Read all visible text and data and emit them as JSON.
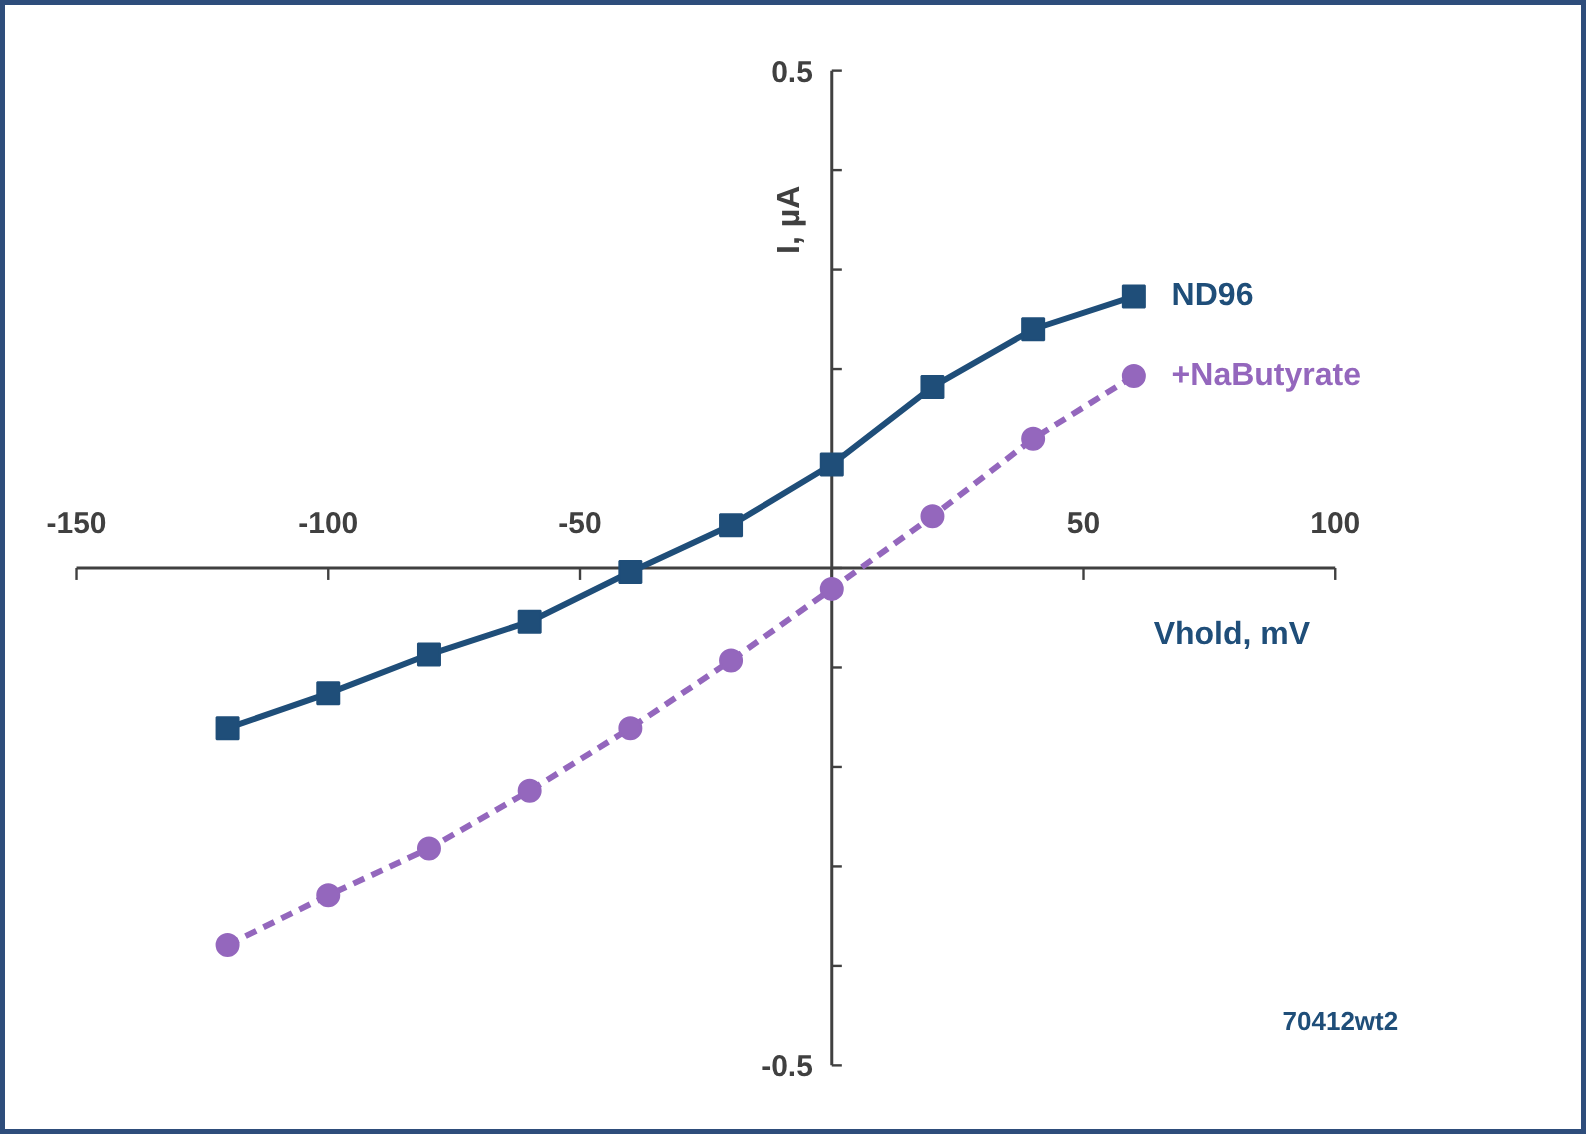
{
  "chart_data": {
    "type": "line",
    "xlabel": "Vhold, mV",
    "ylabel": "I, µA",
    "x": [
      -120,
      -100,
      -80,
      -60,
      -40,
      -20,
      0,
      20,
      40,
      60
    ],
    "series": [
      {
        "name": "ND96",
        "color": "#1f4e79",
        "marker": "square",
        "line_style": "solid",
        "values": [
          -0.161,
          -0.126,
          -0.087,
          -0.054,
          -0.004,
          0.043,
          0.104,
          0.182,
          0.24,
          0.273
        ]
      },
      {
        "name": "+NaButyrate",
        "color": "#9467bd",
        "marker": "circle",
        "line_style": "dashed",
        "values": [
          -0.379,
          -0.329,
          -0.282,
          -0.224,
          -0.161,
          -0.093,
          -0.021,
          0.052,
          0.13,
          0.193
        ]
      }
    ],
    "xlim": [
      -150,
      100
    ],
    "ylim": [
      -0.5,
      0.5
    ],
    "xticks": [
      -150,
      -100,
      -50,
      {
        "value": 0,
        "label": null
      },
      50,
      100
    ],
    "yticks": [
      -0.5,
      {
        "value": -0.4,
        "label": null
      },
      {
        "value": -0.3,
        "label": null
      },
      {
        "value": -0.2,
        "label": null
      },
      {
        "value": -0.1,
        "label": null
      },
      {
        "value": 0,
        "label": null
      },
      {
        "value": 0.1,
        "label": null
      },
      {
        "value": 0.2,
        "label": null
      },
      {
        "value": 0.3,
        "label": null
      },
      {
        "value": 0.4,
        "label": null
      },
      0.5
    ],
    "grid": false,
    "legend": "right",
    "annotations": [
      "70412wt2"
    ]
  }
}
